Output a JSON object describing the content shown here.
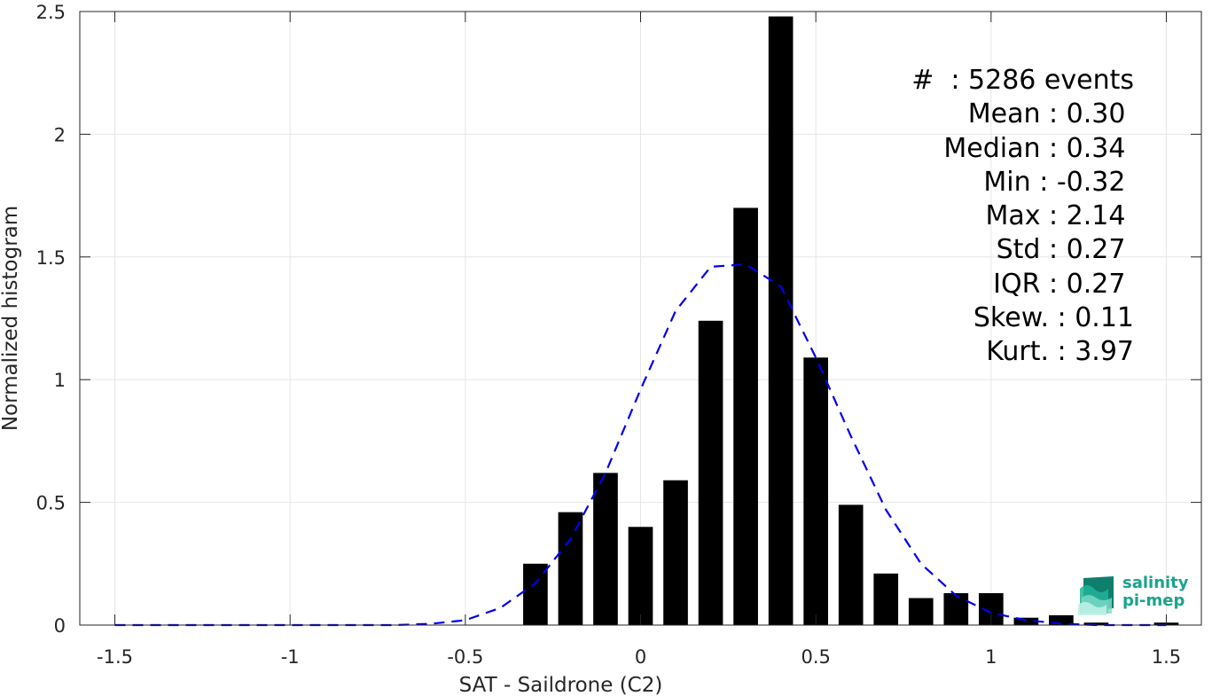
{
  "chart_data": {
    "type": "bar",
    "xlabel": "SAT - Saildrone (C2)",
    "ylabel": "Normalized histogram",
    "xlim": [
      -1.6,
      1.6
    ],
    "ylim": [
      0,
      2.5
    ],
    "xticks": [
      -1.5,
      -1,
      -0.5,
      0,
      0.5,
      1,
      1.5
    ],
    "xtick_labels": [
      "-1.5",
      "-1",
      "-0.5",
      "0",
      "0.5",
      "1",
      "1.5"
    ],
    "yticks": [
      0,
      0.5,
      1,
      1.5,
      2,
      2.5
    ],
    "ytick_labels": [
      "0",
      "0.5",
      "1",
      "1.5",
      "2",
      "2.5"
    ],
    "grid": true,
    "bar_width": 0.07,
    "bars": {
      "x": [
        -0.3,
        -0.2,
        -0.1,
        0.0,
        0.1,
        0.2,
        0.3,
        0.4,
        0.5,
        0.6,
        0.7,
        0.8,
        0.9,
        1.0,
        1.1,
        1.2,
        1.3,
        1.4,
        1.5
      ],
      "values": [
        0.25,
        0.46,
        0.62,
        0.4,
        0.59,
        1.24,
        1.7,
        2.48,
        1.09,
        0.49,
        0.21,
        0.11,
        0.13,
        0.13,
        0.03,
        0.04,
        0.01,
        0.0,
        0.01
      ]
    },
    "fit_curve": {
      "style": "dashed",
      "color": "#0000ee",
      "x": [
        -1.5,
        -1.4,
        -1.3,
        -1.2,
        -1.1,
        -1.0,
        -0.9,
        -0.8,
        -0.7,
        -0.6,
        -0.5,
        -0.4,
        -0.3,
        -0.2,
        -0.1,
        0.0,
        0.1,
        0.2,
        0.3,
        0.4,
        0.5,
        0.6,
        0.7,
        0.8,
        0.9,
        1.0,
        1.1,
        1.2,
        1.3,
        1.4,
        1.5
      ],
      "y": [
        0.0,
        0.0,
        0.0,
        0.0,
        0.0,
        0.0,
        0.0,
        0.0,
        0.0,
        0.005,
        0.02,
        0.07,
        0.17,
        0.35,
        0.62,
        0.96,
        1.28,
        1.46,
        1.47,
        1.38,
        1.09,
        0.77,
        0.47,
        0.25,
        0.12,
        0.05,
        0.02,
        0.006,
        0.0,
        0.0,
        0.0
      ]
    },
    "colors": {
      "bars": "#000000",
      "fit": "#0000ee",
      "grid": "#e6e6e6",
      "axis": "#262626"
    }
  },
  "stats": [
    "#  : 5286 events",
    "Mean : 0.30 ",
    "Median : 0.34 ",
    "Min : -0.32 ",
    "Max : 2.14 ",
    "Std : 0.27 ",
    "IQR : 0.27 ",
    "Skew. : 0.11",
    "Kurt. : 3.97"
  ],
  "logo": {
    "line1": "salinity",
    "line2": "pi-mep",
    "color": "#1aa38c"
  }
}
